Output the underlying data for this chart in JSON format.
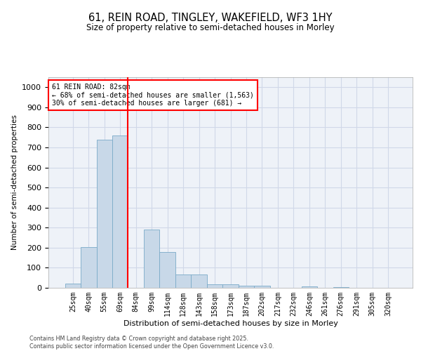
{
  "title": "61, REIN ROAD, TINGLEY, WAKEFIELD, WF3 1HY",
  "subtitle": "Size of property relative to semi-detached houses in Morley",
  "xlabel": "Distribution of semi-detached houses by size in Morley",
  "ylabel": "Number of semi-detached properties",
  "categories": [
    "25sqm",
    "40sqm",
    "55sqm",
    "69sqm",
    "84sqm",
    "99sqm",
    "114sqm",
    "128sqm",
    "143sqm",
    "158sqm",
    "173sqm",
    "187sqm",
    "202sqm",
    "217sqm",
    "232sqm",
    "246sqm",
    "261sqm",
    "276sqm",
    "291sqm",
    "305sqm",
    "320sqm"
  ],
  "values": [
    22,
    203,
    738,
    758,
    0,
    292,
    178,
    65,
    65,
    18,
    17,
    12,
    12,
    0,
    0,
    8,
    0,
    5,
    0,
    0,
    0
  ],
  "bar_color": "#c8d8e8",
  "bar_edge_color": "#7aaac8",
  "vline_color": "red",
  "vline_label": "61 REIN ROAD: 82sqm",
  "annotation_smaller": "← 68% of semi-detached houses are smaller (1,563)",
  "annotation_larger": "30% of semi-detached houses are larger (681) →",
  "annotation_box_color": "white",
  "annotation_box_edge": "red",
  "ylim": [
    0,
    1050
  ],
  "yticks": [
    0,
    100,
    200,
    300,
    400,
    500,
    600,
    700,
    800,
    900,
    1000
  ],
  "grid_color": "#d0d8e8",
  "bg_color": "#eef2f8",
  "footnote1": "Contains HM Land Registry data © Crown copyright and database right 2025.",
  "footnote2": "Contains public sector information licensed under the Open Government Licence v3.0."
}
